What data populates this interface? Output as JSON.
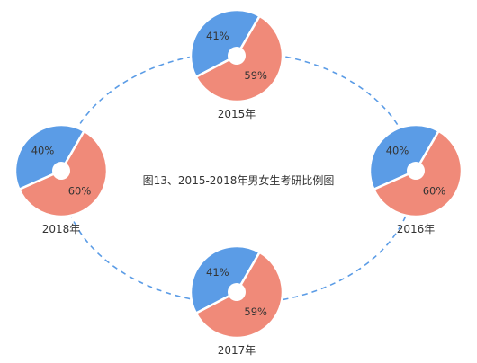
{
  "chart_data": {
    "type": "pie",
    "title": "图13、2015-2018年男女生考研比例图",
    "colors": {
      "male": "#5b9ce6",
      "female": "#f08a79",
      "ring": "#5b9ce6"
    },
    "pies": [
      {
        "year": "2015年",
        "values": [
          41,
          59
        ],
        "labels": [
          "41%",
          "59%"
        ]
      },
      {
        "year": "2016年",
        "values": [
          40,
          60
        ],
        "labels": [
          "40%",
          "60%"
        ]
      },
      {
        "year": "2017年",
        "values": [
          41,
          59
        ],
        "labels": [
          "41%",
          "59%"
        ]
      },
      {
        "year": "2018年",
        "values": [
          40,
          60
        ],
        "labels": [
          "40%",
          "60%"
        ]
      }
    ]
  }
}
